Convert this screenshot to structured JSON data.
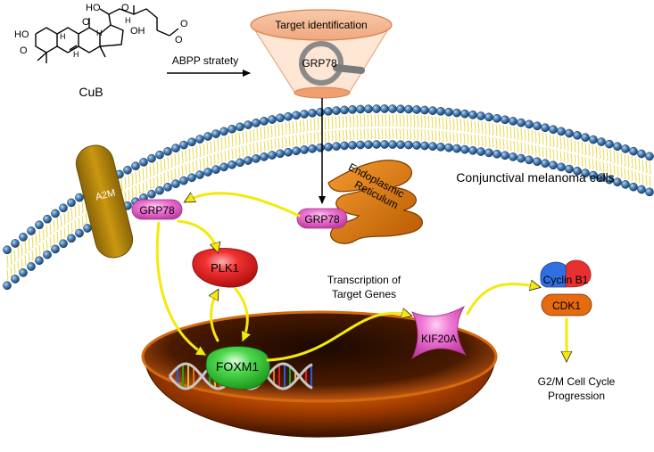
{
  "top": {
    "compound_name": "CuB",
    "method_label": "ABPP stratety",
    "target_box_title": "Target identification",
    "target_protein": "GRP78"
  },
  "membrane": {
    "cell_label": "Conjunctival melanoma cells",
    "receptor_label": "A2M",
    "grp78_membrane_label": "GRP78",
    "grp78_er_label": "GRP78",
    "er_label_line1": "Endoplasmic",
    "er_label_line2": "Reticulum"
  },
  "pathway": {
    "plk1_label": "PLK1",
    "foxm1_label": "FOXM1",
    "transcription_line1": "Transcription of",
    "transcription_line2": "Target Genes",
    "kif20a_label": "KIF20A",
    "cyclin_label": "Cyclin B1",
    "cdk1_label": "CDK1",
    "outcome_line1": "G2/M  Cell Cycle",
    "outcome_line2": "Progression"
  },
  "molecule_labels": {
    "h1": "H",
    "h2": "H",
    "h3": "H",
    "h4": "H",
    "ho1": "HO",
    "ho2": "HO",
    "oh": "OH",
    "o1": "O",
    "o2": "O",
    "o3": "O",
    "o4": "O",
    "o5": "O"
  },
  "colors": {
    "arrow_yellow": "#f5e90a",
    "grp78_pink": "#e860c8",
    "plk1_red": "#e82020",
    "foxm1_green": "#3fd03f",
    "er_orange": "#e07b10",
    "a2m_olive": "#b8860b",
    "bead_blue": "#3a72a8",
    "cdk1_orange": "#e56a10"
  }
}
